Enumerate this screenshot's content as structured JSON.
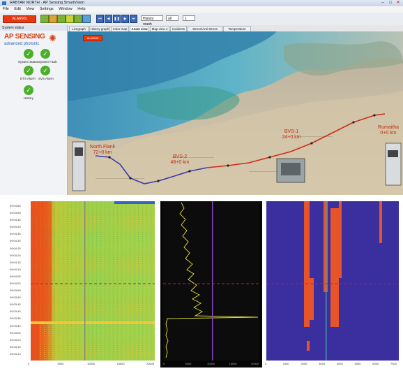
{
  "window": {
    "title": "RABTAR NORTH · AP Sensing SmartVision",
    "min": "–",
    "max": "□",
    "close": "✕"
  },
  "menu": [
    "File",
    "Edit",
    "View",
    "Settings",
    "Window",
    "Help"
  ],
  "toolbar": {
    "alarm_button": "ALARMS",
    "history_combo": "History graph",
    "zone_combo": "all",
    "count_combo": "1"
  },
  "sidebar": {
    "header": "System status",
    "logo_top": "AP SENSING",
    "logo_bottom": "advanced photonic",
    "statuses": [
      {
        "label": "System Status"
      },
      {
        "label": "System Fault"
      },
      {
        "label": "DTS Alarm"
      },
      {
        "label": "SVS Alarm"
      },
      {
        "label": "History"
      }
    ]
  },
  "tabs": [
    "Livegraph",
    "History graph",
    "Color map",
    "Asset view 1",
    "Map view 1",
    "Incidents",
    "Stress/Anti Stress graph",
    "Temperature graph"
  ],
  "active_tab": 3,
  "map": {
    "alarm_button": "ALARMS",
    "sites": [
      {
        "name": "North Flank",
        "km": "72+0 km"
      },
      {
        "name": "BVS-2",
        "km": "48+0 km"
      },
      {
        "name": "BVS-1",
        "km": "24+0 km"
      },
      {
        "name": "Rumaitha",
        "km": "0+0 km"
      }
    ]
  },
  "waterfall": {
    "times": [
      "09:04:55",
      "09:04:50",
      "09:04:45",
      "09:04:40",
      "09:04:35",
      "09:04:30",
      "09:04:25",
      "09:04:20",
      "09:04:15",
      "09:04:10",
      "09:04:05",
      "09:04:00",
      "09:03:55",
      "09:03:50",
      "09:03:45",
      "09:03:40",
      "09:03:35",
      "09:03:30",
      "09:03:25",
      "09:03:20",
      "09:03:15",
      "09:03:10"
    ],
    "x_ticks": [
      "0",
      "5000",
      "10000",
      "15000",
      "20000"
    ]
  },
  "trace": {
    "x_ticks": [
      "0",
      "5000",
      "10000",
      "15000",
      "20000"
    ]
  },
  "classmap": {
    "x_ticks": [
      "0",
      "1000",
      "2000",
      "3000",
      "4000",
      "5000",
      "6000",
      "7000"
    ]
  },
  "colors": {
    "alarm_red": "#e8380d",
    "ok_green": "#4caf2a",
    "class_bg": "#3b2fa0",
    "class_event": "#e8542a",
    "route_blue": "#3a3ab0",
    "route_red": "#d02a1a"
  }
}
